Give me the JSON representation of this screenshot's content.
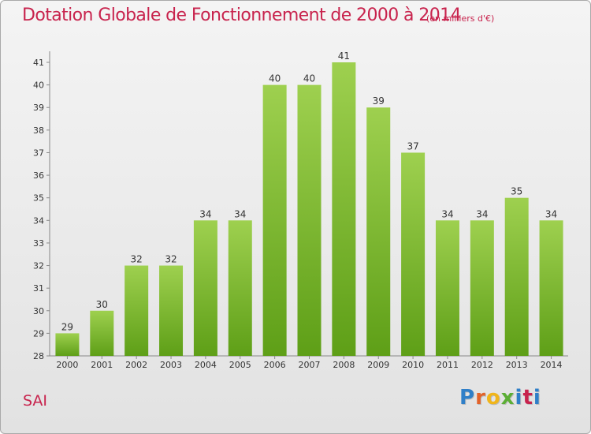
{
  "header": {
    "title": "Dotation Globale de Fonctionnement de 2000 à 2014",
    "unit_note": "(en milliers d'€)"
  },
  "footer": {
    "commune": "SAI",
    "brand": "Proxiti"
  },
  "chart_data": {
    "type": "bar",
    "title": "Dotation Globale de Fonctionnement de 2000 à 2014",
    "subtitle": "(en milliers d'€)",
    "xlabel": "",
    "ylabel": "",
    "categories": [
      "2000",
      "2001",
      "2002",
      "2003",
      "2004",
      "2005",
      "2006",
      "2007",
      "2008",
      "2009",
      "2010",
      "2011",
      "2012",
      "2013",
      "2014"
    ],
    "values": [
      29,
      30,
      32,
      32,
      34,
      34,
      40,
      40,
      41,
      39,
      37,
      34,
      34,
      35,
      34
    ],
    "ylim": [
      28,
      41
    ],
    "yticks": [
      28,
      29,
      30,
      31,
      32,
      33,
      34,
      35,
      36,
      37,
      38,
      39,
      40,
      41
    ],
    "grid": false,
    "bar_color_top": "#9ed04f",
    "bar_color_bottom": "#5e9f17"
  }
}
